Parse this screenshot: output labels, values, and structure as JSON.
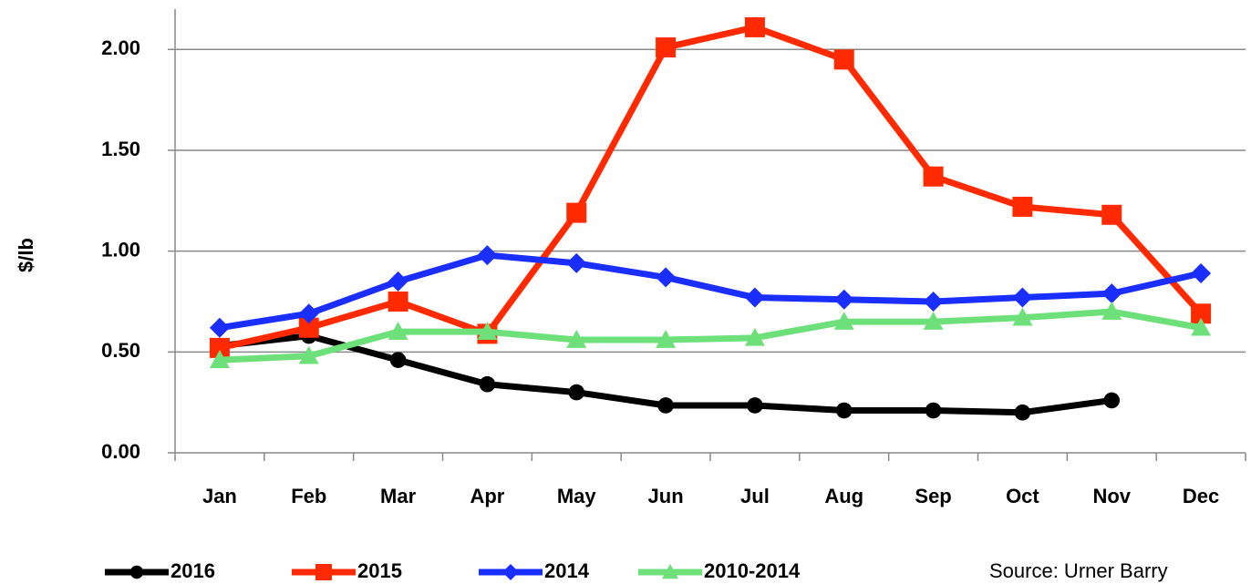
{
  "chart_data": {
    "type": "line",
    "y_label": "$/lb",
    "source": "Source: Urner Barry",
    "categories": [
      "Jan",
      "Feb",
      "Mar",
      "Apr",
      "May",
      "Jun",
      "Jul",
      "Aug",
      "Sep",
      "Oct",
      "Nov",
      "Dec"
    ],
    "series": [
      {
        "name": "2016",
        "color": "#000000",
        "marker": "circle",
        "values": [
          0.53,
          0.58,
          0.46,
          0.34,
          0.3,
          0.235,
          0.235,
          0.21,
          0.21,
          0.2,
          0.26,
          null
        ]
      },
      {
        "name": "2015",
        "color": "#ff2a00",
        "marker": "square",
        "values": [
          0.52,
          0.62,
          0.75,
          0.59,
          1.19,
          2.01,
          2.11,
          1.95,
          1.37,
          1.22,
          1.18,
          0.69
        ]
      },
      {
        "name": "2014",
        "color": "#1a2eff",
        "marker": "diamond",
        "values": [
          0.62,
          0.69,
          0.85,
          0.98,
          0.94,
          0.87,
          0.77,
          0.76,
          0.75,
          0.77,
          0.79,
          0.89
        ]
      },
      {
        "name": "2010-2014",
        "color": "#6ee07a",
        "marker": "triangle",
        "values": [
          0.46,
          0.48,
          0.6,
          0.6,
          0.56,
          0.56,
          0.57,
          0.65,
          0.65,
          0.67,
          0.7,
          0.62
        ]
      }
    ],
    "ylim": [
      0,
      2.2
    ],
    "yticks": [
      {
        "value": 0,
        "label": "0.00"
      },
      {
        "value": 0.5,
        "label": "0.50"
      },
      {
        "value": 1,
        "label": "1.00"
      },
      {
        "value": 1.5,
        "label": "1.50"
      },
      {
        "value": 2,
        "label": "2.00"
      }
    ],
    "grid": true
  }
}
